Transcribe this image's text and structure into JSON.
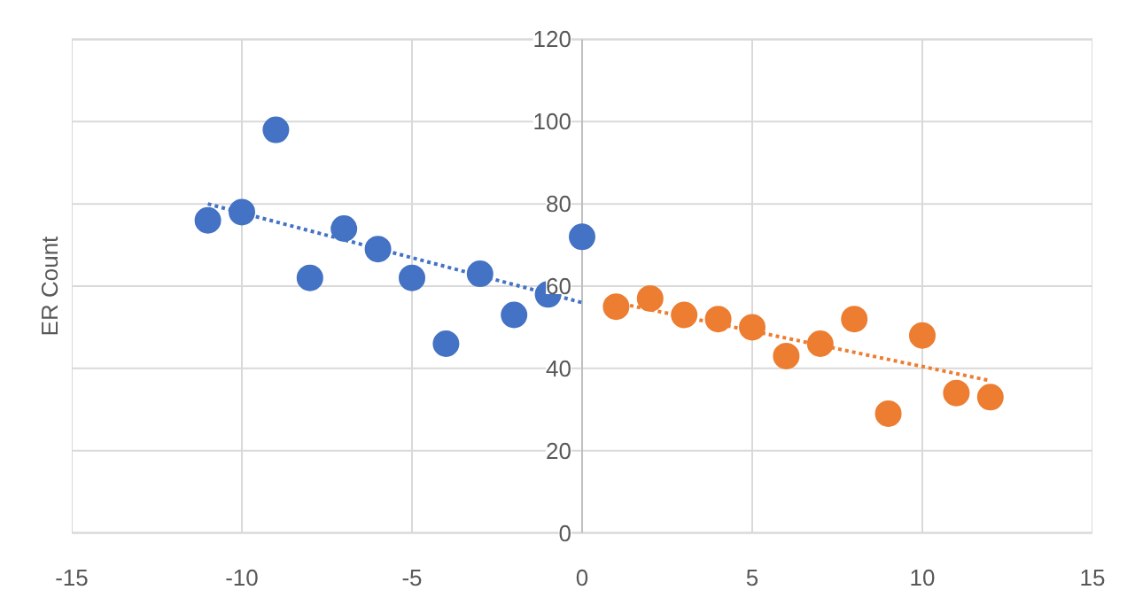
{
  "chart_data": {
    "type": "scatter",
    "ylabel": "ER Count",
    "xlim": [
      -15,
      15
    ],
    "ylim": [
      0,
      120
    ],
    "xticks": [
      -15,
      -10,
      -5,
      0,
      5,
      10,
      15
    ],
    "yticks": [
      0,
      20,
      40,
      60,
      80,
      100,
      120
    ],
    "grid": true,
    "marker": "circle",
    "series": [
      {
        "color": "#4472c4",
        "x": [
          -11,
          -10,
          -9,
          -8,
          -7,
          -6,
          -5,
          -4,
          -3,
          -2,
          -1,
          0
        ],
        "values": [
          76,
          78,
          98,
          62,
          74,
          69,
          62,
          46,
          63,
          53,
          58,
          72
        ]
      },
      {
        "color": "#ed7d31",
        "x": [
          1,
          2,
          3,
          4,
          5,
          6,
          7,
          8,
          9,
          10,
          11,
          12
        ],
        "values": [
          55,
          57,
          53,
          52,
          50,
          43,
          46,
          52,
          29,
          48,
          34,
          33
        ]
      },
      {
        "type": "line",
        "color": "#4472c4",
        "line_style": "dotted",
        "marker": "none",
        "x": [
          -11,
          0
        ],
        "values": [
          80,
          56
        ]
      },
      {
        "type": "line",
        "color": "#ed7d31",
        "line_style": "dotted",
        "marker": "none",
        "x": [
          1,
          12
        ],
        "values": [
          56,
          37
        ]
      }
    ]
  }
}
